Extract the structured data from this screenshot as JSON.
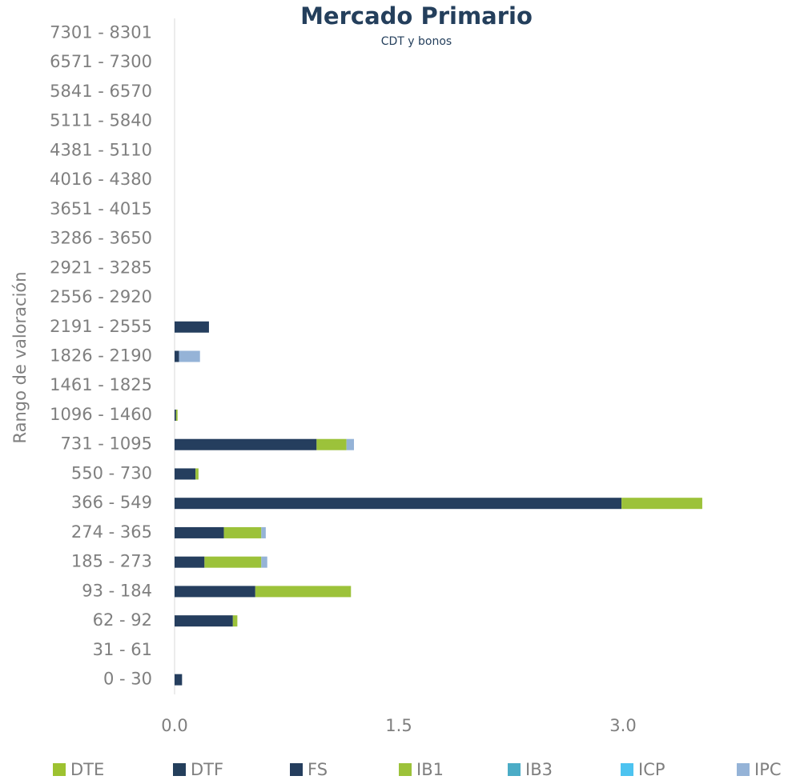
{
  "chart_data": {
    "type": "bar",
    "orientation": "horizontal",
    "stacked": true,
    "title": "Mercado Primario",
    "subtitle": "CDT y bonos",
    "y_label": "Rango de valoración",
    "categories": [
      "0 - 30",
      "31 - 61",
      "62 - 92",
      "93 - 184",
      "185 - 273",
      "274 - 365",
      "366 - 549",
      "550 - 730",
      "731 - 1095",
      "1096 - 1460",
      "1461 - 1825",
      "1826 - 2190",
      "2191 - 2555",
      "2556 - 2920",
      "2921 - 3285",
      "3286 - 3650",
      "3651 - 4015",
      "4016 - 4380",
      "4381 - 5110",
      "5111 - 5840",
      "5841 - 6570",
      "6571 - 7300",
      "7301 - 8301"
    ],
    "series": [
      {
        "name": "DTE",
        "color": "#9dc230",
        "values": [
          0,
          0,
          0,
          0,
          0,
          0,
          0,
          0,
          0,
          0,
          0,
          0,
          0,
          0,
          0,
          0,
          0,
          0,
          0,
          0,
          0,
          0,
          0
        ]
      },
      {
        "name": "DTF",
        "color": "#243f5c",
        "values": [
          0,
          0,
          0,
          0,
          0,
          0,
          0,
          0,
          0,
          0,
          0,
          0,
          0,
          0,
          0,
          0,
          0,
          0,
          0,
          0,
          0,
          0,
          0
        ]
      },
      {
        "name": "FS",
        "color": "#253e5e",
        "values": [
          0.05,
          0,
          0.39,
          0.54,
          0.2,
          0.33,
          2.99,
          0.14,
          0.95,
          0.01,
          0,
          0.03,
          0.23,
          0,
          0,
          0,
          0,
          0,
          0,
          0,
          0,
          0,
          0
        ]
      },
      {
        "name": "IB1",
        "color": "#9cc23a",
        "values": [
          0,
          0,
          0.03,
          0.64,
          0.38,
          0.25,
          0.54,
          0.02,
          0.2,
          0.01,
          0,
          0,
          0,
          0,
          0,
          0,
          0,
          0,
          0,
          0,
          0,
          0,
          0
        ]
      },
      {
        "name": "IB3",
        "color": "#4bacc6",
        "values": [
          0,
          0,
          0,
          0,
          0,
          0,
          0,
          0,
          0,
          0,
          0,
          0,
          0,
          0,
          0,
          0,
          0,
          0,
          0,
          0,
          0,
          0,
          0
        ]
      },
      {
        "name": "ICP",
        "color": "#4dc3f0",
        "values": [
          0,
          0,
          0,
          0,
          0,
          0,
          0,
          0,
          0,
          0,
          0,
          0,
          0,
          0,
          0,
          0,
          0,
          0,
          0,
          0,
          0,
          0,
          0
        ]
      },
      {
        "name": "IPC",
        "color": "#95b3d7",
        "values": [
          0,
          0,
          0,
          0,
          0.04,
          0.03,
          0,
          0,
          0.05,
          0,
          0,
          0.14,
          0,
          0,
          0,
          0,
          0,
          0,
          0,
          0,
          0,
          0,
          0
        ]
      }
    ],
    "xlim": [
      0,
      4.0
    ],
    "xticks": [
      {
        "value": 0,
        "label": "0.0"
      },
      1.5,
      {
        "value": 3,
        "label": "3.0"
      }
    ],
    "legend": "bottom"
  }
}
